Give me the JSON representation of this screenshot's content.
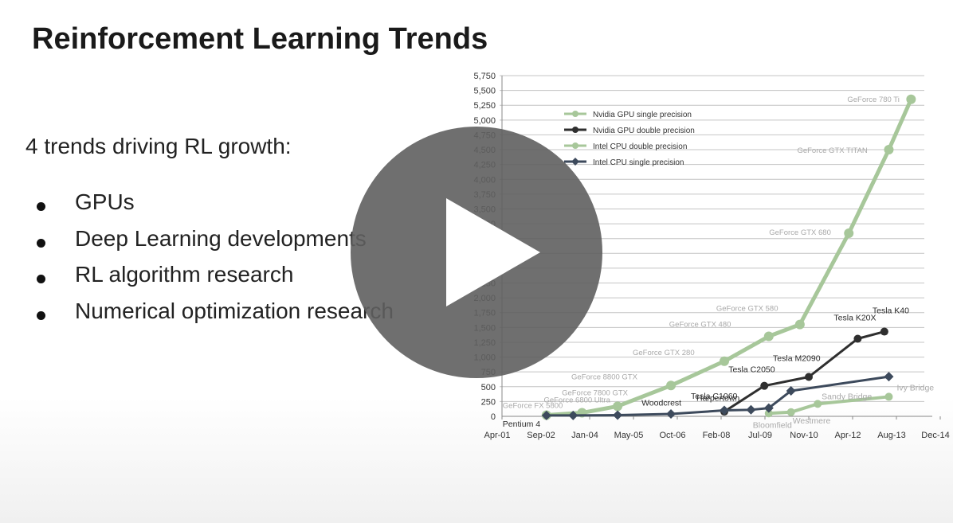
{
  "slide": {
    "title": "Reinforcement Learning Trends",
    "intro": "4 trends driving RL growth:",
    "bullets": [
      "GPUs",
      "Deep Learning developments",
      "RL algorithm research",
      "Numerical optimization research"
    ]
  },
  "player": {
    "play_icon": "play-icon"
  },
  "colors": {
    "gpu": "#a7c79a",
    "dark": "#2f2f2f",
    "grid": "#bdbdbd",
    "play_bg": "#5f5f5f"
  },
  "chart_data": {
    "type": "line",
    "x_labels": [
      "Apr-01",
      "Sep-02",
      "Jan-04",
      "May-05",
      "Oct-06",
      "Feb-08",
      "Jul-09",
      "Nov-10",
      "Apr-12",
      "Aug-13",
      "Dec-14"
    ],
    "ylim": [
      0,
      5750
    ],
    "y_ticks": [
      0,
      250,
      500,
      750,
      1000,
      1250,
      1500,
      1750,
      2000,
      2250,
      2500,
      2750,
      3000,
      3250,
      3500,
      3750,
      4000,
      4250,
      4500,
      4750,
      5000,
      5250,
      5500,
      5750
    ],
    "grid": true,
    "legend_position": "top-left",
    "series": [
      {
        "name": "Nvidia GPU single precision",
        "color": "#a7c79a",
        "marker": "circle",
        "points": [
          {
            "x": 1.0,
            "y": 20,
            "label": "GeForce FX 5800"
          },
          {
            "x": 1.8,
            "y": 60,
            "label": "GeForce 6800 Ultra"
          },
          {
            "x": 2.6,
            "y": 170,
            "label": "GeForce 7800 GTX"
          },
          {
            "x": 3.8,
            "y": 520,
            "label": "GeForce 8800 GTX"
          },
          {
            "x": 5.0,
            "y": 930,
            "label": "GeForce GTX 280"
          },
          {
            "x": 6.0,
            "y": 1350,
            "label": "GeForce GTX 480"
          },
          {
            "x": 6.7,
            "y": 1550,
            "label": "GeForce GTX 580"
          },
          {
            "x": 7.8,
            "y": 3090,
            "label": "GeForce GTX 680"
          },
          {
            "x": 8.7,
            "y": 4500,
            "label": "GeForce GTX TITAN"
          },
          {
            "x": 9.2,
            "y": 5350,
            "label": "GeForce 780 Ti"
          }
        ]
      },
      {
        "name": "Nvidia GPU double precision",
        "color": "#2f2f2f",
        "marker": "circle",
        "points": [
          {
            "x": 5.0,
            "y": 80,
            "label": "Tesla C1060"
          },
          {
            "x": 5.9,
            "y": 515,
            "label": "Tesla C2050"
          },
          {
            "x": 6.9,
            "y": 665,
            "label": "Tesla M2090"
          },
          {
            "x": 8.0,
            "y": 1310,
            "label": "Tesla K20X"
          },
          {
            "x": 8.6,
            "y": 1430,
            "label": "Tesla K40"
          }
        ]
      },
      {
        "name": "Intel CPU double precision",
        "color": "#a7c79a",
        "marker": "circle",
        "points": [
          {
            "x": 6.0,
            "y": 50,
            "label": "Bloomfield"
          },
          {
            "x": 6.5,
            "y": 70,
            "label": "Westmere"
          },
          {
            "x": 7.1,
            "y": 210,
            "label": "Sandy Bridge"
          },
          {
            "x": 8.7,
            "y": 330,
            "label": "Ivy Bridge"
          }
        ]
      },
      {
        "name": "Intel CPU single precision",
        "color": "#3d4a5c",
        "marker": "diamond",
        "points": [
          {
            "x": 1.0,
            "y": 15,
            "label": "Pentium 4"
          },
          {
            "x": 1.6,
            "y": 15,
            "label": ""
          },
          {
            "x": 2.6,
            "y": 20,
            "label": "Woodcrest"
          },
          {
            "x": 3.8,
            "y": 40,
            "label": ""
          },
          {
            "x": 5.0,
            "y": 100,
            "label": "Harpertown"
          },
          {
            "x": 5.6,
            "y": 110,
            "label": ""
          },
          {
            "x": 6.0,
            "y": 140,
            "label": ""
          },
          {
            "x": 6.5,
            "y": 430,
            "label": ""
          },
          {
            "x": 8.7,
            "y": 670,
            "label": ""
          }
        ]
      }
    ]
  }
}
